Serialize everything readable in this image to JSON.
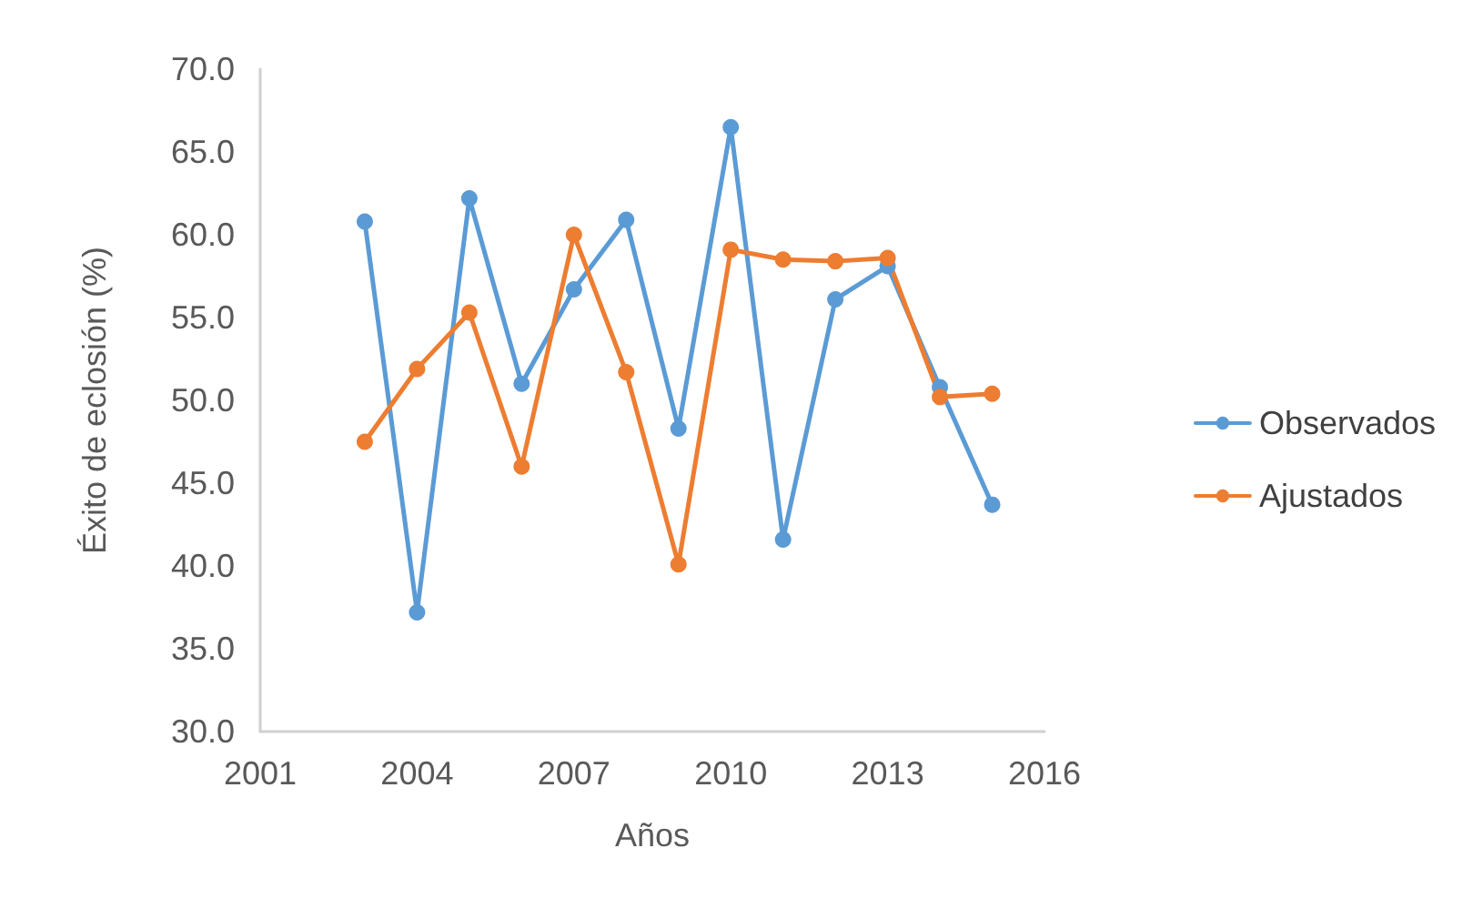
{
  "chart_data": {
    "type": "line",
    "xlabel": "Años",
    "ylabel": "Éxito de eclosión (%)",
    "x": [
      2003,
      2004,
      2005,
      2006,
      2007,
      2008,
      2009,
      2010,
      2011,
      2012,
      2013,
      2014,
      2015
    ],
    "series": [
      {
        "name": "Observados",
        "color": "#5b9bd5",
        "values": [
          60.8,
          37.2,
          62.2,
          51.0,
          56.7,
          60.9,
          48.3,
          66.5,
          41.6,
          56.1,
          58.1,
          50.8,
          43.7
        ]
      },
      {
        "name": "Ajustados",
        "color": "#ed7d31",
        "values": [
          47.5,
          51.9,
          55.3,
          46.0,
          60.0,
          51.7,
          40.1,
          59.1,
          58.5,
          58.4,
          58.6,
          50.2,
          50.4
        ]
      }
    ],
    "xlim": [
      2001,
      2016
    ],
    "xticks": [
      2001,
      2004,
      2007,
      2010,
      2013,
      2016
    ],
    "ylim": [
      30,
      70
    ],
    "yticks": [
      {
        "value": 30,
        "label": "30.0"
      },
      {
        "value": 35,
        "label": "35.0"
      },
      {
        "value": 40,
        "label": "40.0"
      },
      {
        "value": 45,
        "label": "45.0"
      },
      {
        "value": 50,
        "label": "50.0"
      },
      {
        "value": 55,
        "label": "55.0"
      },
      {
        "value": 60,
        "label": "60.0"
      },
      {
        "value": 65,
        "label": "65.0"
      },
      {
        "value": 70,
        "label": "70.0"
      }
    ],
    "grid": false,
    "legend": "right",
    "marker": "circle",
    "line_style": "solid"
  }
}
